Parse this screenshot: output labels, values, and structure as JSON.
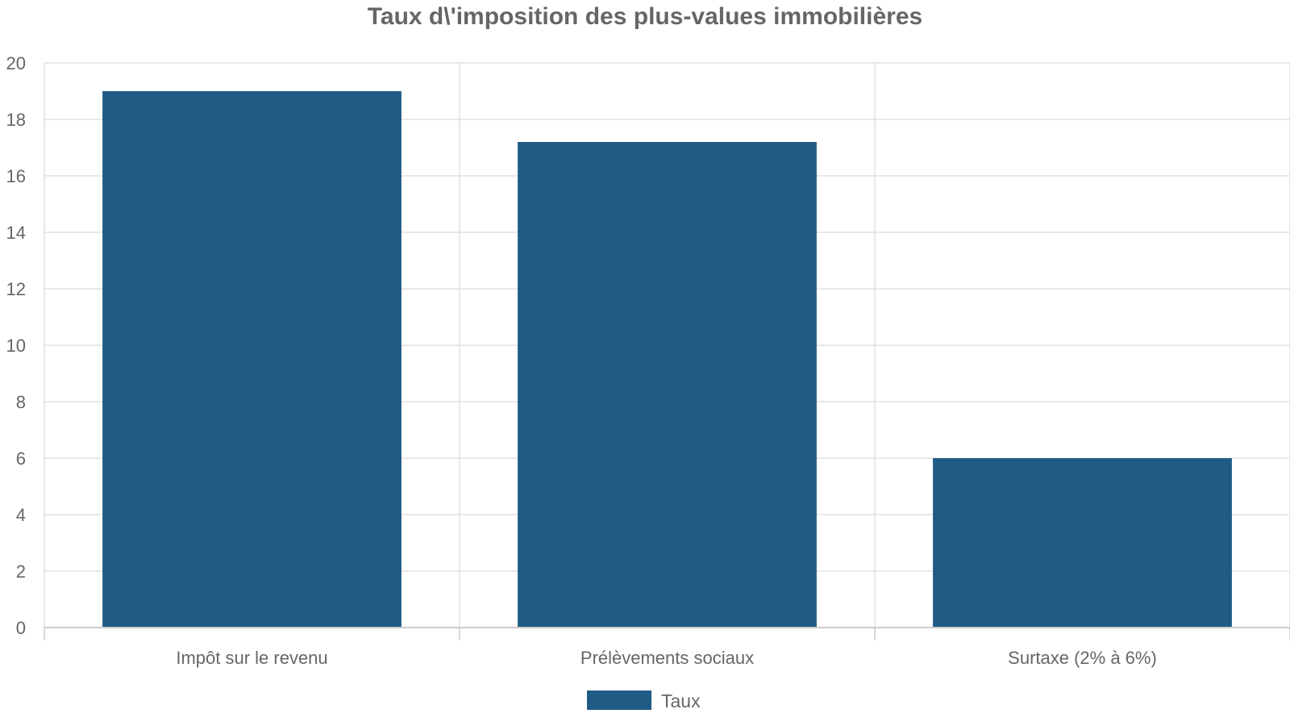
{
  "chart_data": {
    "type": "bar",
    "title": "Taux d\\'imposition des plus-values immobilières",
    "categories": [
      "Impôt sur le revenu",
      "Prélèvements sociaux",
      "Surtaxe (2% à 6%)"
    ],
    "series": [
      {
        "name": "Taux",
        "values": [
          19,
          17.2,
          6
        ]
      }
    ],
    "ylim": [
      0,
      20
    ],
    "yticks": [
      0,
      2,
      4,
      6,
      8,
      10,
      12,
      14,
      16,
      18,
      20
    ],
    "grid": true,
    "legend_position": "bottom",
    "colors": {
      "bar": "#1f5b85",
      "grid": "#e0e0e0",
      "axis": "#cccccc",
      "text": "#666666"
    }
  }
}
